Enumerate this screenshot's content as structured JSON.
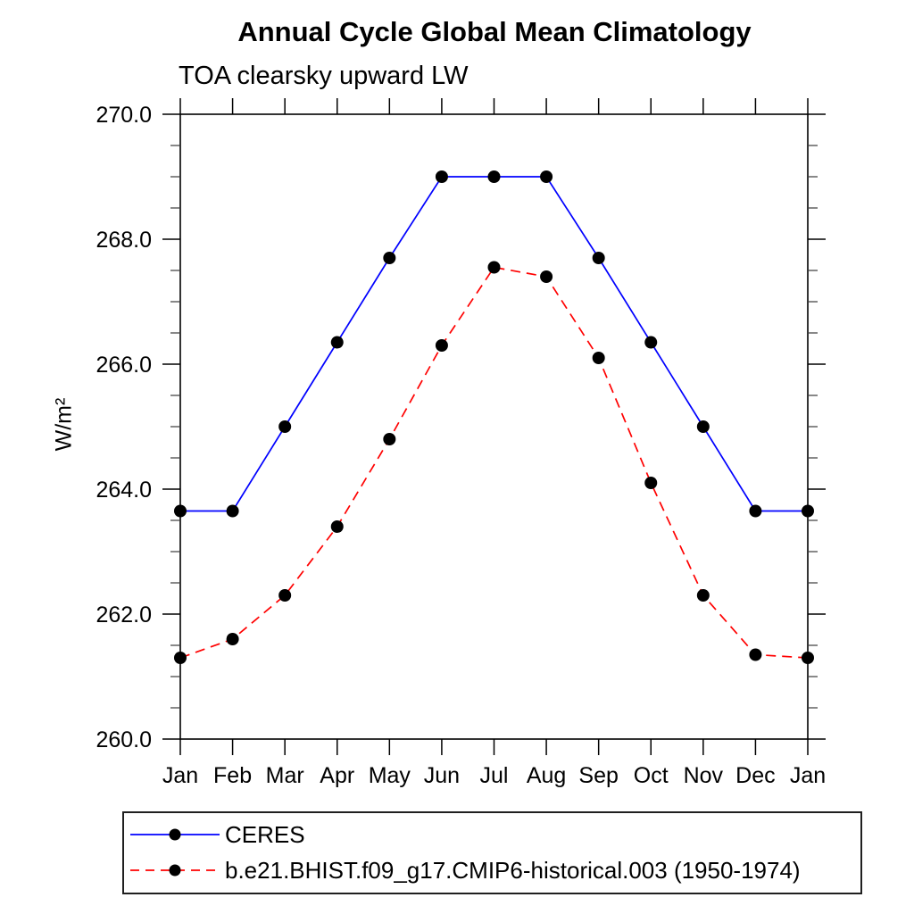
{
  "chart_data": {
    "type": "line",
    "title": "Annual Cycle Global Mean Climatology",
    "subtitle": "TOA clearsky upward LW",
    "ylabel": "W/m²",
    "xlabel": "",
    "x_categories": [
      "Jan",
      "Feb",
      "Mar",
      "Apr",
      "May",
      "Jun",
      "Jul",
      "Aug",
      "Sep",
      "Oct",
      "Nov",
      "Dec",
      "Jan"
    ],
    "series": [
      {
        "name": "CERES",
        "color": "#0000ff",
        "line_style": "solid",
        "marker": "circle",
        "marker_color": "#000000",
        "values": [
          263.65,
          263.65,
          265.0,
          266.35,
          267.7,
          269.0,
          269.0,
          269.0,
          267.7,
          266.35,
          265.0,
          263.65,
          263.65
        ]
      },
      {
        "name": "b.e21.BHIST.f09_g17.CMIP6-historical.003 (1950-1974)",
        "color": "#ff0000",
        "line_style": "dashed",
        "marker": "circle",
        "marker_color": "#000000",
        "values": [
          261.3,
          261.6,
          262.3,
          263.4,
          264.8,
          266.3,
          267.55,
          267.4,
          266.1,
          264.1,
          262.3,
          261.35,
          261.3
        ]
      }
    ],
    "ylim": [
      260.0,
      270.0
    ],
    "ytick_values": [
      270.0,
      268.0,
      266.0,
      264.0,
      262.0,
      260.0
    ],
    "ytick_labels": [
      "270.0",
      "268.0",
      "266.0",
      "264.0",
      "262.0",
      "260.0"
    ],
    "ytick_minor_interval": 0.5,
    "grid": false,
    "frame": true,
    "ticks": "all-sides-outward",
    "legend_position": "bottom-left-box"
  }
}
